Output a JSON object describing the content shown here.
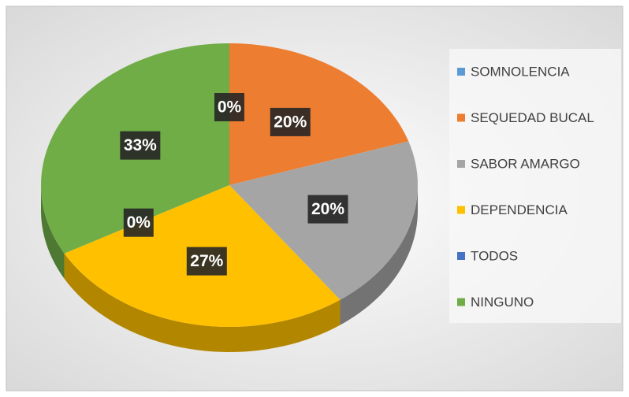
{
  "chart_data": {
    "type": "pie3d",
    "categories": [
      "SOMNOLENCIA",
      "SEQUEDAD BUCAL",
      "SABOR AMARGO",
      "DEPENDENCIA",
      "TODOS",
      "NINGUNO"
    ],
    "values": [
      0,
      20,
      20,
      27,
      0,
      33
    ],
    "value_labels": [
      "0%",
      "20%",
      "20%",
      "27%",
      "0%",
      "33%"
    ],
    "colors": [
      "#5b9bd5",
      "#ed7d31",
      "#a5a5a5",
      "#ffc000",
      "#4472c4",
      "#70ad47"
    ],
    "legend": "right"
  }
}
